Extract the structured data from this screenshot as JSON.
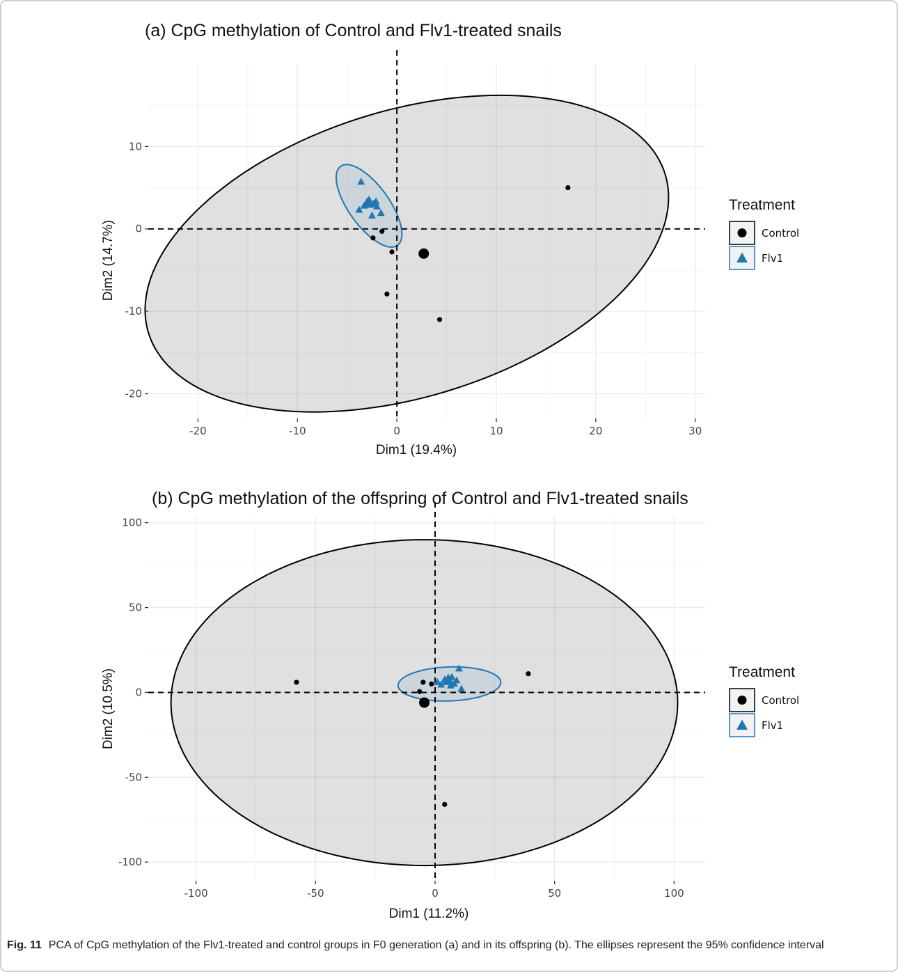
{
  "colors": {
    "control": "#000000",
    "flv1": "#2077b4",
    "ellipse_fill": "#dcdcdc",
    "grid": "#ebebeb"
  },
  "chart_data": [
    {
      "type": "scatter",
      "title": "(a) CpG methylation of Control and Flv1-treated snails",
      "xlabel": "Dim1 (19.4%)",
      "ylabel": "Dim2 (14.7%)",
      "xlim": [
        -25,
        31
      ],
      "ylim": [
        -23,
        20
      ],
      "x_ticks": [
        -20,
        -10,
        0,
        10,
        20,
        30
      ],
      "x_tick_labels": [
        "-20",
        "-10",
        "0",
        "10",
        "20",
        "30"
      ],
      "y_ticks": [
        -20,
        -10,
        0,
        10
      ],
      "y_tick_labels": [
        "-20",
        "-10",
        "0",
        "10"
      ],
      "grid": true,
      "legend": {
        "title": "Treatment",
        "position": "right",
        "entries": [
          {
            "label": "Control",
            "series": "control"
          },
          {
            "label": "Flv1",
            "series": "flv1"
          }
        ]
      },
      "series": [
        {
          "name": "Control",
          "key": "control",
          "marker": "circle",
          "points": [
            [
              17.2,
              5.0
            ],
            [
              -1.5,
              -0.3
            ],
            [
              -2.4,
              -1.1
            ],
            [
              -0.5,
              -2.8
            ],
            [
              -1.0,
              -7.9
            ],
            [
              4.3,
              -11.0
            ]
          ],
          "centroid": [
            2.7,
            -3.0
          ],
          "ellipse": {
            "center": [
              1.0,
              -3.0
            ],
            "semi_axes": [
              27.8,
              17.0
            ],
            "angle_deg": 24
          }
        },
        {
          "name": "Flv1",
          "key": "flv1",
          "marker": "triangle",
          "points": [
            [
              -3.6,
              5.7
            ],
            [
              -3.0,
              3.3
            ],
            [
              -2.7,
              2.9
            ],
            [
              -3.3,
              2.8
            ],
            [
              -2.3,
              3.1
            ],
            [
              -2.0,
              2.7
            ],
            [
              -2.5,
              1.6
            ],
            [
              -3.8,
              2.3
            ],
            [
              -1.6,
              1.9
            ],
            [
              -2.1,
              3.3
            ]
          ],
          "centroid": [
            -2.8,
            3.2
          ],
          "ellipse": {
            "center": [
              -2.8,
              2.8
            ],
            "semi_axes": [
              5.6,
              2.15
            ],
            "angle_deg": -61
          }
        }
      ]
    },
    {
      "type": "scatter",
      "title": "(b) CpG methylation of the offspring of Control and Flv1-treated snails",
      "xlabel": "Dim1 (11.2%)",
      "ylabel": "Dim2 (10.5%)",
      "xlim": [
        -120,
        113
      ],
      "ylim": [
        -111,
        104
      ],
      "x_ticks": [
        -100,
        -50,
        0,
        50,
        100
      ],
      "x_tick_labels": [
        "-100",
        "-50",
        "0",
        "50",
        "100"
      ],
      "y_ticks": [
        -100,
        -50,
        0,
        50,
        100
      ],
      "y_tick_labels": [
        "-100",
        "-50",
        "0",
        "50",
        "100"
      ],
      "grid": true,
      "legend": {
        "title": "Treatment",
        "position": "right",
        "entries": [
          {
            "label": "Control",
            "series": "control"
          },
          {
            "label": "Flv1",
            "series": "flv1"
          }
        ]
      },
      "series": [
        {
          "name": "Control",
          "key": "control",
          "marker": "circle",
          "points": [
            [
              -58.0,
              6.0
            ],
            [
              39.0,
              11.0
            ],
            [
              -5.0,
              6.0
            ],
            [
              -1.5,
              5.0
            ],
            [
              -6.5,
              0.5
            ],
            [
              4.0,
              -66.0
            ]
          ],
          "centroid": [
            -4.5,
            -6.0
          ],
          "ellipse": {
            "center": [
              -4.5,
              -6.0
            ],
            "semi_axes": [
              106.0,
              96.0
            ],
            "angle_deg": 0
          }
        },
        {
          "name": "Flv1",
          "key": "flv1",
          "marker": "triangle",
          "points": [
            [
              10.0,
              14.0
            ],
            [
              7.0,
              9.0
            ],
            [
              4.0,
              7.5
            ],
            [
              5.0,
              6.0
            ],
            [
              1.0,
              6.0
            ],
            [
              8.0,
              5.0
            ],
            [
              2.5,
              4.5
            ],
            [
              11.0,
              2.0
            ],
            [
              6.5,
              4.0
            ],
            [
              9.0,
              7.0
            ]
          ],
          "centroid": [
            5.5,
            7.0
          ],
          "ellipse": {
            "center": [
              6.0,
              5.0
            ],
            "semi_axes": [
              21.5,
              10.0
            ],
            "angle_deg": 3
          }
        }
      ]
    }
  ],
  "caption": {
    "label": "Fig. 11",
    "text": "PCA of CpG methylation of the Flv1-treated and control groups in F0 generation (a) and in its offspring (b). The ellipses represent the 95% confidence interval"
  }
}
